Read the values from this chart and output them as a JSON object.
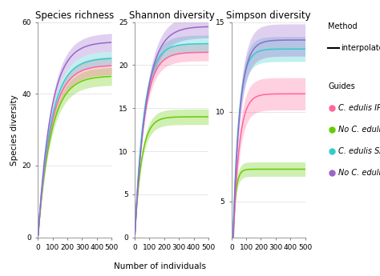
{
  "panels": [
    "Species richness",
    "Shannon diversity",
    "Simpson diversity"
  ],
  "xlabel": "Number of individuals",
  "ylabel": "Species diversity",
  "guides": [
    {
      "label": "C. edulis IP",
      "color": "#FF6699"
    },
    {
      "label": "No C. edulis IP",
      "color": "#66CC00"
    },
    {
      "label": "C. edulis SA",
      "color": "#33CCCC"
    },
    {
      "label": "No C. edulis SA",
      "color": "#9966CC"
    }
  ],
  "panel0": {
    "ylim": [
      0,
      60
    ],
    "yticks": [
      0,
      20,
      40,
      60
    ],
    "show_yticks": [
      0,
      20,
      40,
      60
    ],
    "curves": [
      {
        "color": "#FF6699",
        "a": 48.0,
        "b": 0.0115,
        "band": 2.5
      },
      {
        "color": "#66CC00",
        "a": 45.0,
        "b": 0.0115,
        "band": 2.5
      },
      {
        "color": "#33CCCC",
        "a": 50.0,
        "b": 0.0115,
        "band": 2.0
      },
      {
        "color": "#9966CC",
        "a": 54.5,
        "b": 0.0115,
        "band": 2.5
      }
    ]
  },
  "panel1": {
    "ylim": [
      0,
      25
    ],
    "yticks": [
      0,
      5,
      10,
      15,
      20,
      25
    ],
    "show_yticks": [
      0,
      5,
      10,
      15,
      20,
      25
    ],
    "curves": [
      {
        "color": "#FF6699",
        "a": 21.5,
        "b": 0.016,
        "band": 1.0
      },
      {
        "color": "#66CC00",
        "a": 14.0,
        "b": 0.022,
        "band": 0.9
      },
      {
        "color": "#33CCCC",
        "a": 22.5,
        "b": 0.016,
        "band": 1.0
      },
      {
        "color": "#9966CC",
        "a": 24.5,
        "b": 0.013,
        "band": 1.3
      }
    ]
  },
  "panel2": {
    "ylim": [
      3,
      15
    ],
    "yticks": [
      5,
      10,
      15
    ],
    "show_yticks": [
      5,
      10,
      15
    ],
    "curves": [
      {
        "color": "#FF6699",
        "a": 11.0,
        "b": 0.025,
        "band": 0.9
      },
      {
        "color": "#66CC00",
        "a": 6.8,
        "b": 0.055,
        "band": 0.4
      },
      {
        "color": "#33CCCC",
        "a": 13.5,
        "b": 0.025,
        "band": 0.7
      },
      {
        "color": "#9966CC",
        "a": 14.0,
        "b": 0.022,
        "band": 0.9
      }
    ]
  },
  "bg_color": "#FFFFFF",
  "grid_color": "#DDDDDD",
  "title_fontsize": 8.5,
  "label_fontsize": 7.5,
  "tick_fontsize": 6.5,
  "legend_fontsize": 7.0,
  "band_alpha": 0.3
}
